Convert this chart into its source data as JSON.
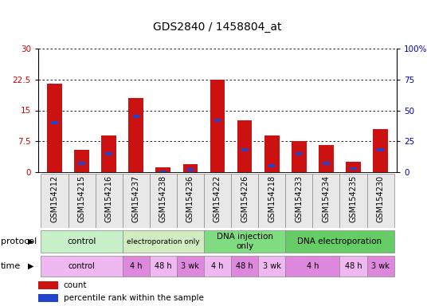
{
  "title": "GDS2840 / 1458804_at",
  "samples": [
    "GSM154212",
    "GSM154215",
    "GSM154216",
    "GSM154237",
    "GSM154238",
    "GSM154236",
    "GSM154222",
    "GSM154226",
    "GSM154218",
    "GSM154233",
    "GSM154234",
    "GSM154235",
    "GSM154230"
  ],
  "red_values": [
    21.5,
    5.5,
    9.0,
    18.0,
    1.2,
    2.0,
    22.5,
    12.5,
    9.0,
    7.5,
    6.5,
    2.5,
    10.5
  ],
  "blue_pct": [
    40,
    7,
    15,
    45,
    0,
    2,
    42,
    18,
    5,
    15,
    7,
    3,
    18
  ],
  "ylim_left": [
    0,
    30
  ],
  "ylim_right": [
    0,
    100
  ],
  "yticks_left": [
    0,
    7.5,
    15,
    22.5,
    30
  ],
  "yticks_right": [
    0,
    25,
    50,
    75,
    100
  ],
  "ytick_labels_left": [
    "0",
    "7.5",
    "15",
    "22.5",
    "30"
  ],
  "ytick_labels_right": [
    "0",
    "25",
    "50",
    "75",
    "100%"
  ],
  "protocol_groups": [
    {
      "label": "control",
      "start": 0,
      "end": 3,
      "color": "#c8f0c8"
    },
    {
      "label": "electroporation only",
      "start": 3,
      "end": 6,
      "color": "#d0ecc0"
    },
    {
      "label": "DNA injection\nonly",
      "start": 6,
      "end": 9,
      "color": "#80dc80"
    },
    {
      "label": "DNA electroporation",
      "start": 9,
      "end": 13,
      "color": "#66cc66"
    }
  ],
  "time_groups": [
    {
      "label": "control",
      "start": 0,
      "end": 3,
      "color": "#f0b8f0"
    },
    {
      "label": "4 h",
      "start": 3,
      "end": 4,
      "color": "#dd88dd"
    },
    {
      "label": "48 h",
      "start": 4,
      "end": 5,
      "color": "#f0b8f0"
    },
    {
      "label": "3 wk",
      "start": 5,
      "end": 6,
      "color": "#dd88dd"
    },
    {
      "label": "4 h",
      "start": 6,
      "end": 7,
      "color": "#f0b8f0"
    },
    {
      "label": "48 h",
      "start": 7,
      "end": 8,
      "color": "#dd88dd"
    },
    {
      "label": "3 wk",
      "start": 8,
      "end": 9,
      "color": "#f0b8f0"
    },
    {
      "label": "4 h",
      "start": 9,
      "end": 11,
      "color": "#dd88dd"
    },
    {
      "label": "48 h",
      "start": 11,
      "end": 12,
      "color": "#f0b8f0"
    },
    {
      "label": "3 wk",
      "start": 12,
      "end": 13,
      "color": "#dd88dd"
    }
  ],
  "bar_color_red": "#cc1111",
  "bar_color_blue": "#2244cc",
  "bar_width": 0.55,
  "grid_color": "#000000",
  "bg_color": "#ffffff",
  "label_color_left": "#cc0000",
  "label_color_right": "#0000bb",
  "title_fontsize": 10,
  "tick_fontsize": 7.5,
  "legend_fontsize": 7.5,
  "sample_fontsize": 7
}
